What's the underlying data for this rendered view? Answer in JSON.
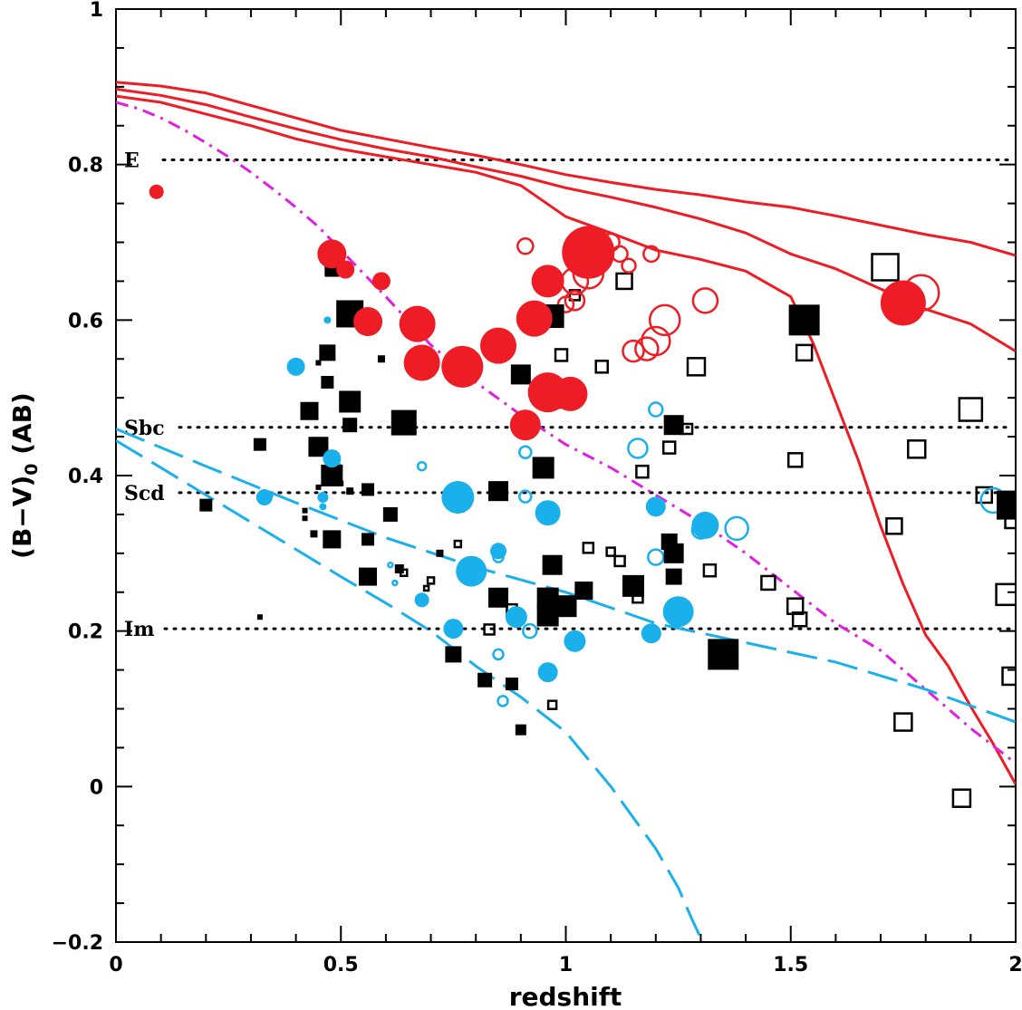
{
  "chart_data": {
    "type": "scatter",
    "title": "",
    "xlabel": "redshift",
    "ylabel_main": "(B−V)",
    "ylabel_sub": "0",
    "ylabel_tail": " (AB)",
    "xlim": [
      0,
      2
    ],
    "ylim": [
      -0.2,
      1
    ],
    "xticks": [
      {
        "v": 0,
        "label": "0"
      },
      {
        "v": 0.5,
        "label": "0.5"
      },
      {
        "v": 1,
        "label": "1"
      },
      {
        "v": 1.5,
        "label": "1.5"
      },
      {
        "v": 2,
        "label": "2"
      }
    ],
    "yticks": [
      {
        "v": -0.2,
        "label": "−0.2"
      },
      {
        "v": 0,
        "label": "0"
      },
      {
        "v": 0.2,
        "label": "0.2"
      },
      {
        "v": 0.4,
        "label": "0.4"
      },
      {
        "v": 0.6,
        "label": "0.6"
      },
      {
        "v": 0.8,
        "label": "0.8"
      },
      {
        "v": 1,
        "label": "1"
      }
    ],
    "colors": {
      "red": "#ee1c24",
      "blue": "#1ab0ec",
      "magenta": "#e020e0",
      "black": "#000000"
    },
    "reference_lines": [
      {
        "label": "E",
        "y": 0.806
      },
      {
        "label": "Sbc",
        "y": 0.462
      },
      {
        "label": "Scd",
        "y": 0.378
      },
      {
        "label": "Im",
        "y": 0.203
      }
    ],
    "model_curves": [
      {
        "name": "red-model-1",
        "color": "red",
        "dash": "solid",
        "x": [
          0,
          0.1,
          0.2,
          0.3,
          0.4,
          0.5,
          0.6,
          0.7,
          0.8,
          0.9,
          1.0,
          1.1,
          1.2,
          1.3,
          1.4,
          1.5,
          1.6,
          1.7,
          1.8,
          1.9,
          2.0
        ],
        "y": [
          0.906,
          0.901,
          0.892,
          0.876,
          0.86,
          0.844,
          0.833,
          0.822,
          0.812,
          0.8,
          0.787,
          0.777,
          0.768,
          0.761,
          0.752,
          0.745,
          0.734,
          0.722,
          0.71,
          0.7,
          0.683
        ]
      },
      {
        "name": "red-model-2",
        "color": "red",
        "dash": "solid",
        "x": [
          0,
          0.1,
          0.2,
          0.3,
          0.4,
          0.5,
          0.6,
          0.7,
          0.8,
          0.9,
          1.0,
          1.1,
          1.2,
          1.3,
          1.4,
          1.5,
          1.6,
          1.7,
          1.8,
          1.9,
          2.0
        ],
        "y": [
          0.897,
          0.889,
          0.877,
          0.861,
          0.846,
          0.832,
          0.82,
          0.81,
          0.797,
          0.785,
          0.77,
          0.758,
          0.745,
          0.73,
          0.712,
          0.685,
          0.666,
          0.64,
          0.614,
          0.595,
          0.56
        ]
      },
      {
        "name": "red-model-3",
        "color": "red",
        "dash": "solid",
        "x": [
          0,
          0.1,
          0.2,
          0.3,
          0.4,
          0.5,
          0.6,
          0.7,
          0.8,
          0.9,
          1.0,
          1.1,
          1.2,
          1.3,
          1.4,
          1.5,
          1.55,
          1.6,
          1.65,
          1.7,
          1.75,
          1.8,
          1.85,
          1.9,
          1.95,
          2.0
        ],
        "y": [
          0.888,
          0.88,
          0.865,
          0.85,
          0.833,
          0.82,
          0.81,
          0.8,
          0.79,
          0.773,
          0.733,
          0.712,
          0.69,
          0.678,
          0.663,
          0.63,
          0.57,
          0.495,
          0.42,
          0.335,
          0.26,
          0.195,
          0.155,
          0.103,
          0.055,
          0.003
        ]
      },
      {
        "name": "magenta-model",
        "color": "magenta",
        "dash": "dashdot",
        "x": [
          0,
          0.05,
          0.1,
          0.15,
          0.2,
          0.25,
          0.3,
          0.35,
          0.4,
          0.45,
          0.5,
          0.6,
          0.7,
          0.8,
          0.9,
          1.0,
          1.1,
          1.2,
          1.3,
          1.4,
          1.5,
          1.6,
          1.7,
          1.8,
          1.9,
          2.0
        ],
        "y": [
          0.88,
          0.872,
          0.86,
          0.845,
          0.828,
          0.81,
          0.79,
          0.768,
          0.745,
          0.72,
          0.69,
          0.63,
          0.568,
          0.52,
          0.478,
          0.44,
          0.41,
          0.375,
          0.34,
          0.3,
          0.255,
          0.21,
          0.175,
          0.125,
          0.075,
          0.03
        ]
      },
      {
        "name": "blue-model-1",
        "color": "blue",
        "dash": "longdash",
        "x": [
          0,
          0.2,
          0.4,
          0.6,
          0.8,
          1.0,
          1.2,
          1.4,
          1.6,
          1.8,
          2.0
        ],
        "y": [
          0.46,
          0.412,
          0.365,
          0.32,
          0.282,
          0.25,
          0.21,
          0.185,
          0.16,
          0.125,
          0.083
        ]
      },
      {
        "name": "blue-model-2",
        "color": "blue",
        "dash": "longdash",
        "x": [
          0,
          0.1,
          0.2,
          0.3,
          0.4,
          0.5,
          0.6,
          0.7,
          0.8,
          0.9,
          1.0,
          1.1,
          1.15,
          1.2,
          1.25,
          1.28,
          1.3
        ],
        "y": [
          0.445,
          0.41,
          0.375,
          0.34,
          0.305,
          0.27,
          0.236,
          0.2,
          0.155,
          0.115,
          0.07,
          0.0,
          -0.04,
          -0.08,
          -0.13,
          -0.17,
          -0.195
        ]
      }
    ],
    "series": [
      {
        "name": "red-filled-circles",
        "shape": "circle",
        "color": "red",
        "filled": true,
        "points": [
          [
            0.09,
            0.765,
            8
          ],
          [
            0.48,
            0.685,
            16
          ],
          [
            0.51,
            0.665,
            10
          ],
          [
            0.56,
            0.598,
            16
          ],
          [
            0.59,
            0.65,
            10
          ],
          [
            0.67,
            0.595,
            20
          ],
          [
            0.68,
            0.545,
            20
          ],
          [
            0.77,
            0.54,
            23
          ],
          [
            0.85,
            0.567,
            20
          ],
          [
            0.91,
            0.465,
            17
          ],
          [
            0.93,
            0.602,
            20
          ],
          [
            0.96,
            0.65,
            18
          ],
          [
            0.96,
            0.507,
            22
          ],
          [
            1.01,
            0.505,
            19
          ],
          [
            1.05,
            0.687,
            29
          ],
          [
            1.75,
            0.622,
            25
          ]
        ]
      },
      {
        "name": "red-open-circles",
        "shape": "circle",
        "color": "red",
        "filled": false,
        "points": [
          [
            0.91,
            0.695,
            10
          ],
          [
            1.0,
            0.62,
            10
          ],
          [
            1.02,
            0.625,
            12
          ],
          [
            1.02,
            0.65,
            16
          ],
          [
            1.05,
            0.66,
            18
          ],
          [
            1.1,
            0.7,
            11
          ],
          [
            1.12,
            0.685,
            10
          ],
          [
            1.14,
            0.67,
            9
          ],
          [
            1.15,
            0.56,
            13
          ],
          [
            1.18,
            0.563,
            14
          ],
          [
            1.2,
            0.573,
            17
          ],
          [
            1.19,
            0.685,
            10
          ],
          [
            1.22,
            0.6,
            18
          ],
          [
            1.31,
            0.625,
            15
          ],
          [
            1.79,
            0.635,
            21
          ]
        ]
      },
      {
        "name": "blue-filled-circles",
        "shape": "circle",
        "color": "blue",
        "filled": true,
        "points": [
          [
            0.4,
            0.54,
            10
          ],
          [
            0.48,
            0.422,
            10
          ],
          [
            0.33,
            0.372,
            9
          ],
          [
            0.46,
            0.372,
            6
          ],
          [
            0.68,
            0.24,
            8
          ],
          [
            0.75,
            0.203,
            11
          ],
          [
            0.76,
            0.372,
            18
          ],
          [
            0.79,
            0.277,
            17
          ],
          [
            0.85,
            0.303,
            9
          ],
          [
            0.89,
            0.218,
            12
          ],
          [
            0.96,
            0.352,
            14
          ],
          [
            0.96,
            0.147,
            11
          ],
          [
            1.02,
            0.187,
            12
          ],
          [
            1.2,
            0.36,
            11
          ],
          [
            1.19,
            0.197,
            11
          ],
          [
            1.25,
            0.225,
            17
          ],
          [
            1.31,
            0.336,
            15
          ],
          [
            0.47,
            0.6,
            4
          ],
          [
            0.34,
            0.375,
            5
          ],
          [
            0.46,
            0.36,
            4
          ]
        ]
      },
      {
        "name": "blue-open-circles",
        "shape": "circle",
        "color": "blue",
        "filled": false,
        "points": [
          [
            0.49,
            0.41,
            7
          ],
          [
            0.68,
            0.412,
            6
          ],
          [
            0.85,
            0.295,
            7
          ],
          [
            0.85,
            0.17,
            7
          ],
          [
            0.86,
            0.11,
            7
          ],
          [
            0.91,
            0.43,
            8
          ],
          [
            0.91,
            0.373,
            8
          ],
          [
            0.92,
            0.2,
            9
          ],
          [
            1.16,
            0.435,
            12
          ],
          [
            1.2,
            0.485,
            9
          ],
          [
            1.2,
            0.295,
            10
          ],
          [
            1.3,
            0.33,
            11
          ],
          [
            1.38,
            0.332,
            14
          ],
          [
            1.95,
            0.368,
            15
          ],
          [
            0.62,
            0.262,
            4
          ],
          [
            0.61,
            0.285,
            4
          ]
        ]
      },
      {
        "name": "black-filled-squares",
        "shape": "square",
        "color": "black",
        "filled": true,
        "points": [
          [
            0.2,
            0.362,
            7
          ],
          [
            0.32,
            0.44,
            7
          ],
          [
            0.32,
            0.218,
            3
          ],
          [
            0.43,
            0.483,
            10
          ],
          [
            0.45,
            0.437,
            11
          ],
          [
            0.47,
            0.558,
            9
          ],
          [
            0.47,
            0.52,
            7
          ],
          [
            0.48,
            0.4,
            12
          ],
          [
            0.48,
            0.318,
            10
          ],
          [
            0.48,
            0.665,
            8
          ],
          [
            0.52,
            0.608,
            15
          ],
          [
            0.52,
            0.495,
            12
          ],
          [
            0.52,
            0.465,
            8
          ],
          [
            0.56,
            0.382,
            7
          ],
          [
            0.56,
            0.318,
            7
          ],
          [
            0.56,
            0.27,
            10
          ],
          [
            0.61,
            0.35,
            8
          ],
          [
            0.64,
            0.468,
            14
          ],
          [
            0.75,
            0.17,
            9
          ],
          [
            0.82,
            0.137,
            8
          ],
          [
            0.85,
            0.38,
            11
          ],
          [
            0.85,
            0.243,
            11
          ],
          [
            0.88,
            0.132,
            7
          ],
          [
            0.9,
            0.53,
            11
          ],
          [
            0.9,
            0.073,
            6
          ],
          [
            0.95,
            0.41,
            12
          ],
          [
            0.97,
            0.605,
            13
          ],
          [
            0.97,
            0.285,
            11
          ],
          [
            0.96,
            0.242,
            12
          ],
          [
            0.96,
            0.22,
            12
          ],
          [
            1.0,
            0.232,
            12
          ],
          [
            1.0,
            0.5,
            12
          ],
          [
            1.04,
            0.252,
            10
          ],
          [
            1.15,
            0.258,
            12
          ],
          [
            1.23,
            0.315,
            9
          ],
          [
            1.24,
            0.3,
            11
          ],
          [
            1.24,
            0.465,
            11
          ],
          [
            1.24,
            0.27,
            9
          ],
          [
            1.35,
            0.17,
            17
          ],
          [
            1.53,
            0.6,
            17
          ],
          [
            1.99,
            0.362,
            16
          ],
          [
            0.59,
            0.55,
            4
          ],
          [
            0.44,
            0.325,
            4
          ],
          [
            0.52,
            0.38,
            4
          ],
          [
            0.42,
            0.355,
            3
          ],
          [
            0.42,
            0.345,
            3
          ],
          [
            0.45,
            0.545,
            3
          ],
          [
            0.45,
            0.385,
            3
          ],
          [
            0.5,
            0.39,
            3
          ],
          [
            0.63,
            0.28,
            5
          ],
          [
            0.72,
            0.3,
            4
          ]
        ]
      },
      {
        "name": "black-open-squares",
        "shape": "square",
        "color": "black",
        "filled": false,
        "points": [
          [
            0.64,
            0.275,
            5
          ],
          [
            0.69,
            0.255,
            4
          ],
          [
            0.7,
            0.265,
            5
          ],
          [
            0.76,
            0.312,
            5
          ],
          [
            0.83,
            0.202,
            7
          ],
          [
            0.88,
            0.228,
            7
          ],
          [
            0.97,
            0.105,
            6
          ],
          [
            0.99,
            0.555,
            8
          ],
          [
            1.02,
            0.632,
            7
          ],
          [
            1.05,
            0.307,
            7
          ],
          [
            1.08,
            0.54,
            8
          ],
          [
            1.1,
            0.302,
            6
          ],
          [
            1.12,
            0.29,
            7
          ],
          [
            1.13,
            0.65,
            10
          ],
          [
            1.16,
            0.243,
            7
          ],
          [
            1.17,
            0.405,
            8
          ],
          [
            1.23,
            0.436,
            8
          ],
          [
            1.27,
            0.46,
            7
          ],
          [
            1.29,
            0.54,
            11
          ],
          [
            1.32,
            0.278,
            8
          ],
          [
            1.45,
            0.262,
            9
          ],
          [
            1.51,
            0.42,
            9
          ],
          [
            1.51,
            0.232,
            10
          ],
          [
            1.52,
            0.215,
            9
          ],
          [
            1.53,
            0.558,
            10
          ],
          [
            1.71,
            0.668,
            16
          ],
          [
            1.73,
            0.335,
            10
          ],
          [
            1.75,
            0.083,
            11
          ],
          [
            1.78,
            0.434,
            11
          ],
          [
            1.88,
            -0.015,
            11
          ],
          [
            1.9,
            0.485,
            14
          ],
          [
            1.93,
            0.375,
            10
          ],
          [
            1.98,
            0.247,
            13
          ],
          [
            1.99,
            0.34,
            8
          ],
          [
            1.99,
            0.142,
            11
          ]
        ]
      }
    ]
  }
}
